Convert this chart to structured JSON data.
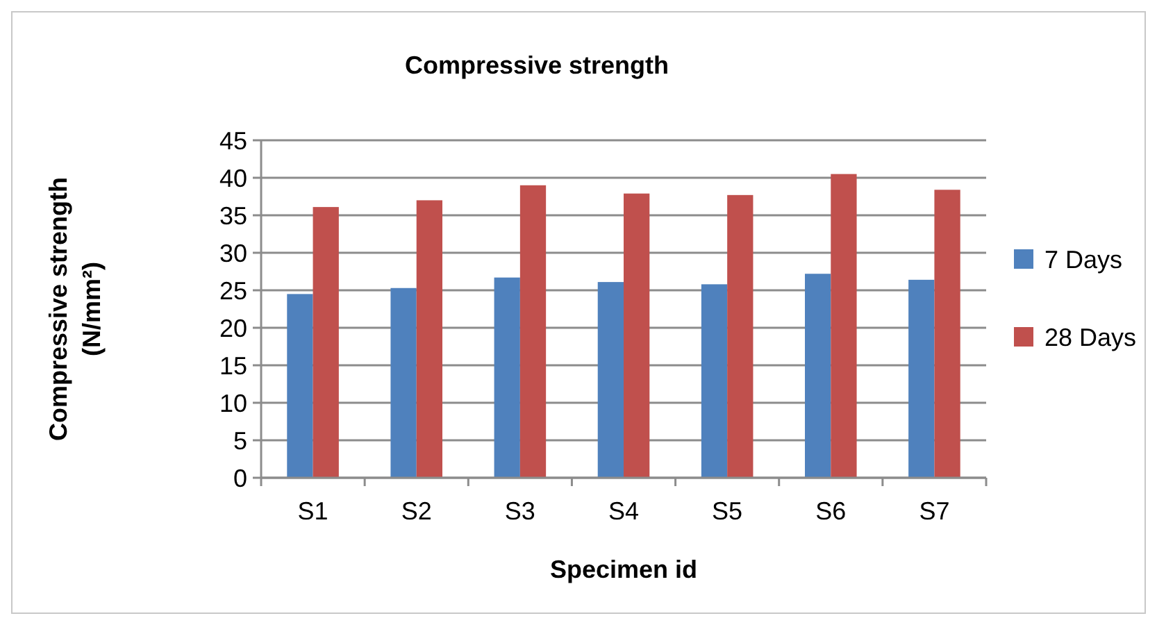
{
  "chart_data": {
    "type": "bar",
    "title": "Compressive strength",
    "xlabel": "Specimen id",
    "ylabel": "Compressive strength (N/mm²)",
    "categories": [
      "S1",
      "S2",
      "S3",
      "S4",
      "S5",
      "S6",
      "S7"
    ],
    "series": [
      {
        "name": "7 Days",
        "color": "#4f81bd",
        "values": [
          24.5,
          25.3,
          26.7,
          26.1,
          25.8,
          27.2,
          26.4
        ]
      },
      {
        "name": "28 Days",
        "color": "#c0504d",
        "values": [
          36.1,
          37.0,
          39.0,
          37.9,
          37.7,
          40.5,
          38.4
        ]
      }
    ],
    "ylim": [
      0,
      45
    ],
    "yticks": [
      0,
      5,
      10,
      15,
      20,
      25,
      30,
      35,
      40,
      45
    ],
    "grid": "y",
    "legend": "right"
  }
}
